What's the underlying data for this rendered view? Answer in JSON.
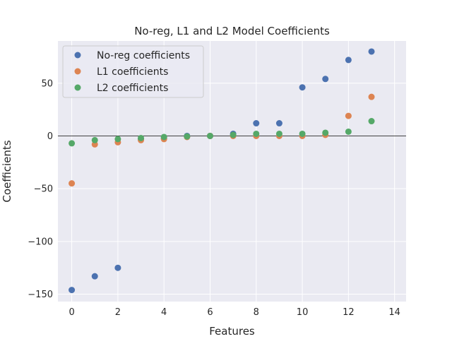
{
  "chart_data": {
    "type": "scatter",
    "title": "No-reg, L1 and L2 Model Coefficients",
    "xlabel": "Features",
    "ylabel": "Coefficients",
    "xlim": [
      -0.6,
      14.5
    ],
    "ylim": [
      -157,
      90
    ],
    "xticks": [
      0,
      2,
      4,
      6,
      8,
      10,
      12,
      14
    ],
    "yticks": [
      50,
      0,
      -50,
      -100,
      -150
    ],
    "ytick_labels": [
      "50",
      "0",
      "−50",
      "−100",
      "−150"
    ],
    "grid": true,
    "zero_line": 0,
    "legend_position": "top-left",
    "series": [
      {
        "name": "No-reg coefficients",
        "color": "#4c72b0",
        "x": [
          0,
          1,
          2,
          3,
          4,
          5,
          6,
          7,
          8,
          9,
          10,
          11,
          12,
          13
        ],
        "y": [
          -146,
          -133,
          -125,
          -3,
          -2,
          0,
          0,
          2,
          12,
          12,
          46,
          54,
          72,
          80
        ]
      },
      {
        "name": "L1 coefficients",
        "color": "#dd8452",
        "x": [
          0,
          1,
          2,
          3,
          4,
          5,
          6,
          7,
          8,
          9,
          10,
          11,
          12,
          13
        ],
        "y": [
          -45,
          -8,
          -6,
          -4,
          -3,
          -1,
          0,
          0,
          0,
          0,
          0,
          1,
          19,
          37
        ]
      },
      {
        "name": "L2 coefficients",
        "color": "#55a868",
        "x": [
          0,
          1,
          2,
          3,
          4,
          5,
          6,
          7,
          8,
          9,
          10,
          11,
          12,
          13
        ],
        "y": [
          -7,
          -4,
          -3,
          -2,
          -1,
          -0.5,
          0,
          1,
          2,
          2,
          2,
          3,
          4,
          14
        ]
      }
    ]
  }
}
